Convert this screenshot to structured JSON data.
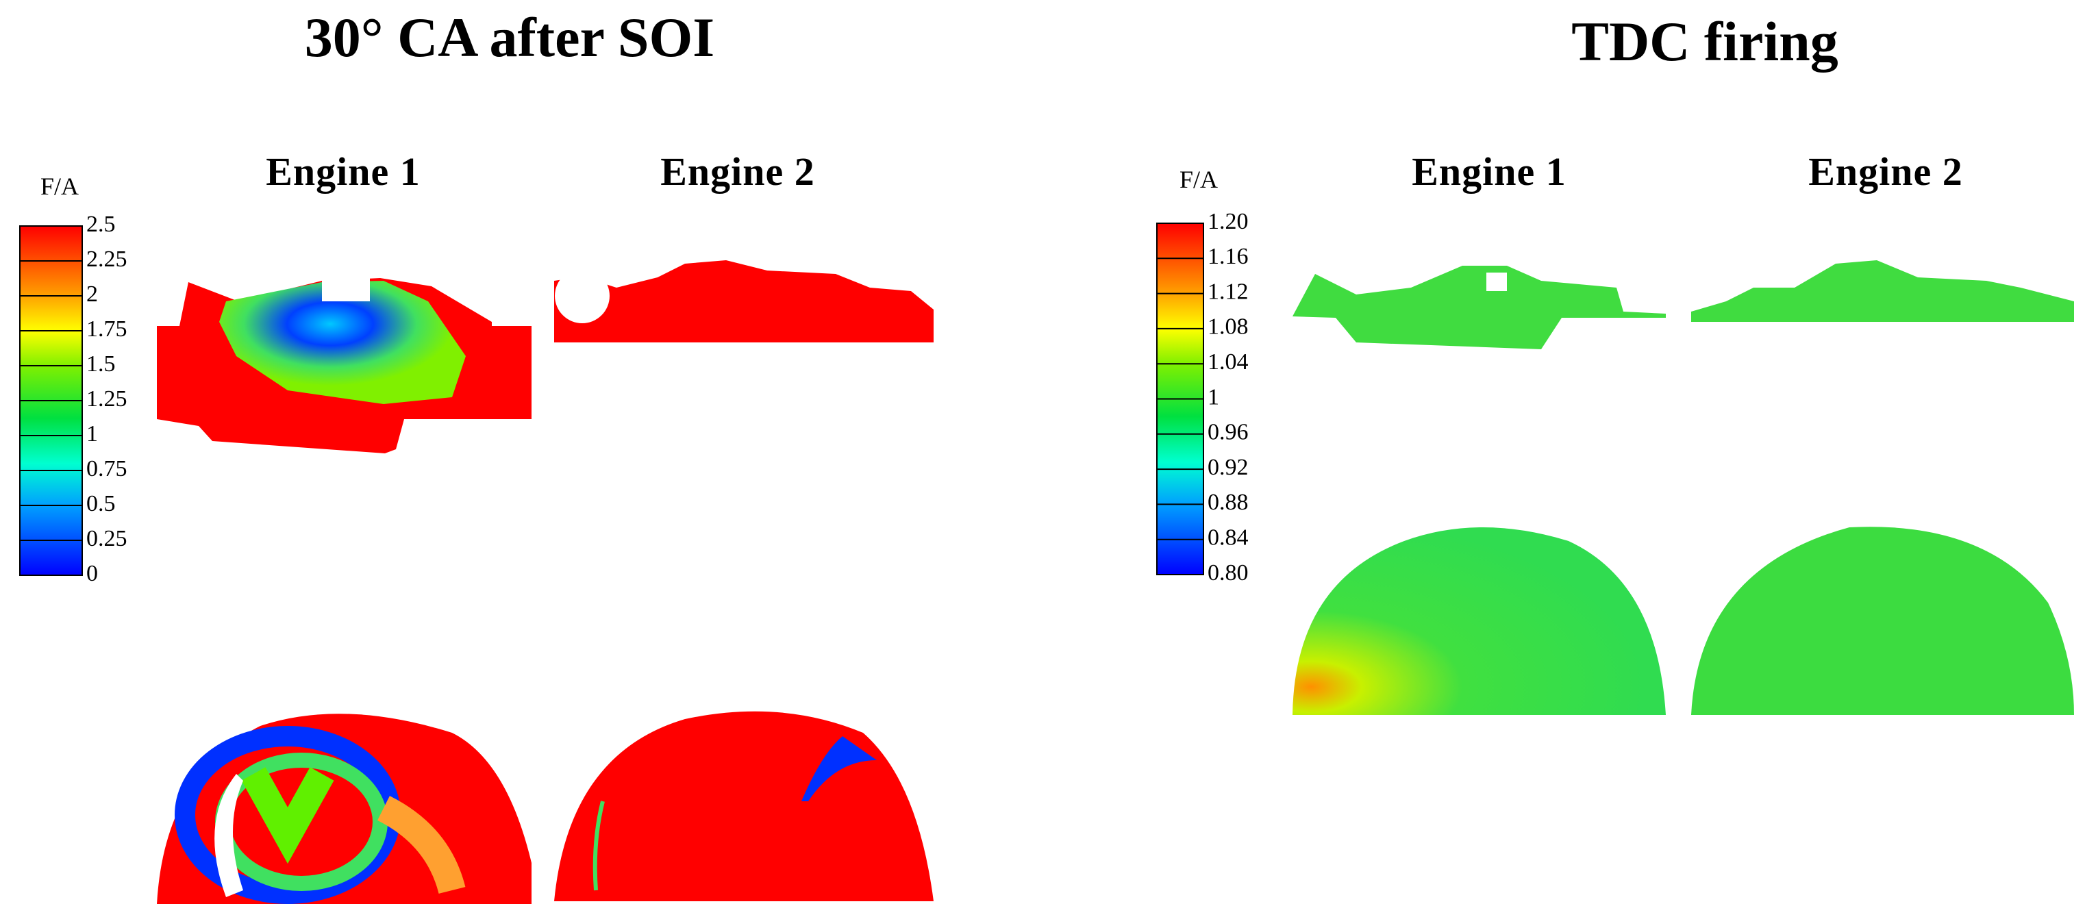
{
  "panels": [
    {
      "title": "30° CA after SOI",
      "engines": [
        "Engine 1",
        "Engine 2"
      ],
      "colorbar": {
        "label": "F/A",
        "lim": [
          0,
          2.5
        ],
        "ticks": [
          2.5,
          2.25,
          2,
          1.75,
          1.5,
          1.25,
          1,
          0.75,
          0.5,
          0.25,
          0
        ]
      }
    },
    {
      "title": "TDC firing",
      "engines": [
        "Engine 1",
        "Engine 2"
      ],
      "colorbar": {
        "label": "F/A",
        "lim": [
          0.8,
          1.2
        ],
        "ticks": [
          {
            "value": 1.2,
            "label": "1.20"
          },
          1.16,
          1.12,
          1.08,
          1.04,
          1,
          0.96,
          0.92,
          0.88,
          0.84,
          {
            "value": 0.8,
            "label": "0.80"
          }
        ]
      }
    }
  ]
}
